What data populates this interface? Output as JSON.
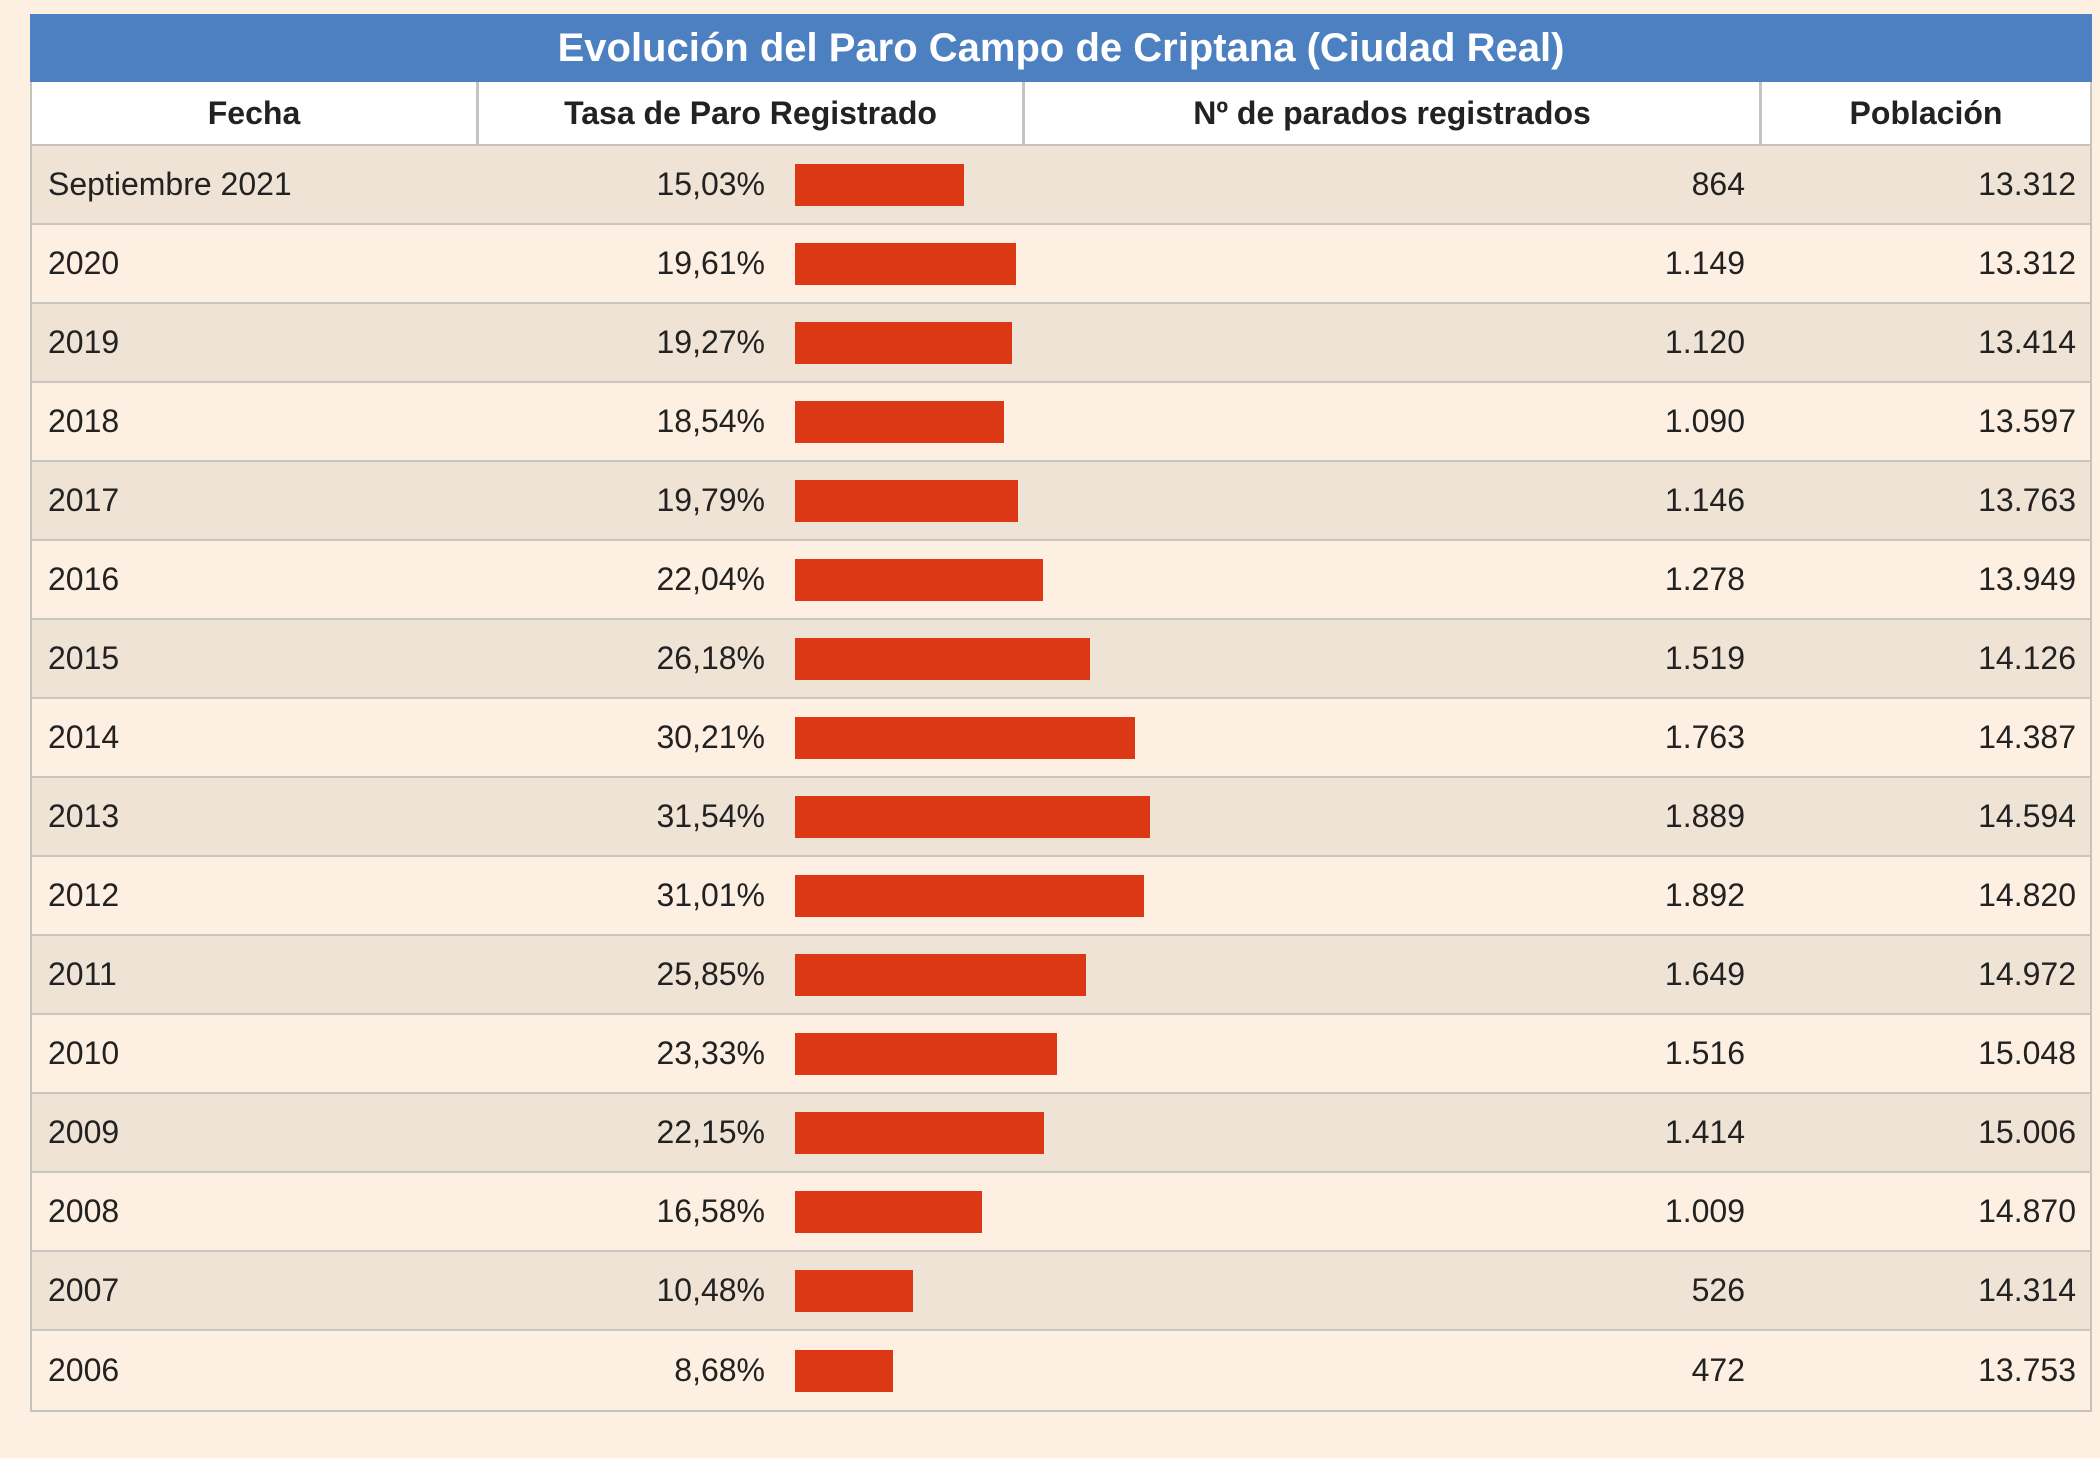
{
  "title": "Evolución del Paro Campo de Criptana (Ciudad Real)",
  "headers": {
    "fecha": "Fecha",
    "tasa": "Tasa de Paro Registrado",
    "parados": "Nº de parados registrados",
    "poblacion": "Población"
  },
  "colors": {
    "title_bg": "#4d80c1",
    "bar": "#dc3816",
    "row_odd": "#efe3d5",
    "row_even": "#fdf0e2"
  },
  "chart_data": {
    "type": "table",
    "bar_column": "tasa",
    "bar_max": 40,
    "rows": [
      {
        "fecha": "Septiembre 2021",
        "tasa": 15.03,
        "tasa_label": "15,03%",
        "parados": "864",
        "poblacion": "13.312"
      },
      {
        "fecha": "2020",
        "tasa": 19.61,
        "tasa_label": "19,61%",
        "parados": "1.149",
        "poblacion": "13.312"
      },
      {
        "fecha": "2019",
        "tasa": 19.27,
        "tasa_label": "19,27%",
        "parados": "1.120",
        "poblacion": "13.414"
      },
      {
        "fecha": "2018",
        "tasa": 18.54,
        "tasa_label": "18,54%",
        "parados": "1.090",
        "poblacion": "13.597"
      },
      {
        "fecha": "2017",
        "tasa": 19.79,
        "tasa_label": "19,79%",
        "parados": "1.146",
        "poblacion": "13.763"
      },
      {
        "fecha": "2016",
        "tasa": 22.04,
        "tasa_label": "22,04%",
        "parados": "1.278",
        "poblacion": "13.949"
      },
      {
        "fecha": "2015",
        "tasa": 26.18,
        "tasa_label": "26,18%",
        "parados": "1.519",
        "poblacion": "14.126"
      },
      {
        "fecha": "2014",
        "tasa": 30.21,
        "tasa_label": "30,21%",
        "parados": "1.763",
        "poblacion": "14.387"
      },
      {
        "fecha": "2013",
        "tasa": 31.54,
        "tasa_label": "31,54%",
        "parados": "1.889",
        "poblacion": "14.594"
      },
      {
        "fecha": "2012",
        "tasa": 31.01,
        "tasa_label": "31,01%",
        "parados": "1.892",
        "poblacion": "14.820"
      },
      {
        "fecha": "2011",
        "tasa": 25.85,
        "tasa_label": "25,85%",
        "parados": "1.649",
        "poblacion": "14.972"
      },
      {
        "fecha": "2010",
        "tasa": 23.33,
        "tasa_label": "23,33%",
        "parados": "1.516",
        "poblacion": "15.048"
      },
      {
        "fecha": "2009",
        "tasa": 22.15,
        "tasa_label": "22,15%",
        "parados": "1.414",
        "poblacion": "15.006"
      },
      {
        "fecha": "2008",
        "tasa": 16.58,
        "tasa_label": "16,58%",
        "parados": "1.009",
        "poblacion": "14.870"
      },
      {
        "fecha": "2007",
        "tasa": 10.48,
        "tasa_label": "10,48%",
        "parados": "526",
        "poblacion": "14.314"
      },
      {
        "fecha": "2006",
        "tasa": 8.68,
        "tasa_label": "8,68%",
        "parados": "472",
        "poblacion": "13.753"
      }
    ]
  }
}
